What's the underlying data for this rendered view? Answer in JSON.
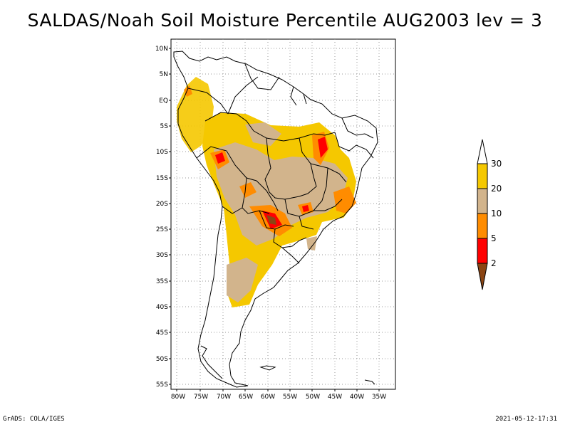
{
  "title": "SALDAS/Noah Soil Moisture Percentile AUG2003 lev = 3",
  "footer_left": "GrADS: COLA/IGES",
  "footer_right": "2021-05-12-17:31",
  "map": {
    "lat_labels": [
      "10N",
      "5N",
      "EQ",
      "5S",
      "10S",
      "15S",
      "20S",
      "25S",
      "30S",
      "35S",
      "40S",
      "45S",
      "50S",
      "55S"
    ],
    "lon_labels": [
      "80W",
      "75W",
      "70W",
      "65W",
      "60W",
      "55W",
      "50W",
      "45W",
      "40W",
      "35W"
    ]
  },
  "legend": {
    "labels": [
      "30",
      "20",
      "10",
      "5",
      "2"
    ],
    "colors": {
      "above_30": "#ffffff",
      "20_30": "#f5c800",
      "10_20": "#d2b48c",
      "5_10": "#ff8c00",
      "2_5": "#ff0000",
      "below_2": "#8b4513"
    }
  }
}
